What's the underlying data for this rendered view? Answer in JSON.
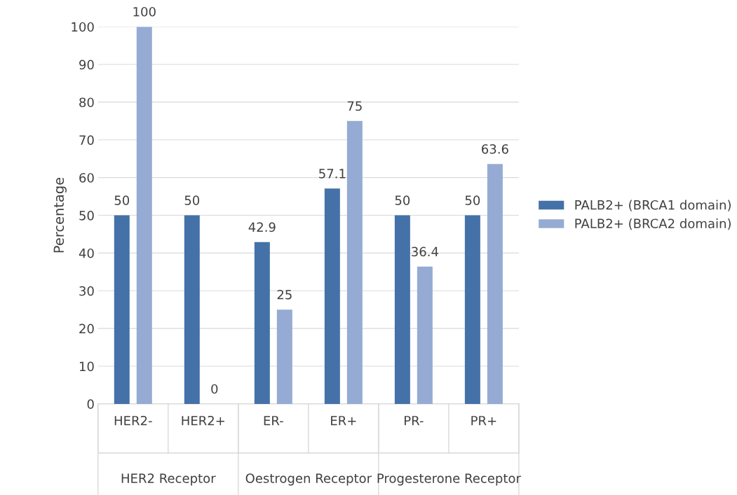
{
  "chart_data": {
    "type": "bar",
    "ylabel": "Percentage",
    "categories": [
      "HER2-",
      "HER2+",
      "ER-",
      "ER+",
      "PR-",
      "PR+"
    ],
    "series": [
      {
        "name": "PALB2+ (BRCA1 domain)",
        "color": "#4472a8",
        "values": [
          50,
          50,
          42.9,
          57.1,
          50,
          50
        ]
      },
      {
        "name": "PALB2+ (BRCA2 domain)",
        "color": "#95abd3",
        "values": [
          100,
          0,
          25,
          75,
          36.4,
          63.6
        ]
      }
    ],
    "annotations": [
      "HER2 Receptor",
      "Oestrogen Receptor",
      "Progesterone Receptor"
    ],
    "ylim": [
      0,
      100
    ],
    "yticks": [
      0,
      10,
      20,
      30,
      40,
      50,
      60,
      70,
      80,
      90,
      100
    ],
    "grid": "y",
    "data_labels": true,
    "legend": "right"
  }
}
